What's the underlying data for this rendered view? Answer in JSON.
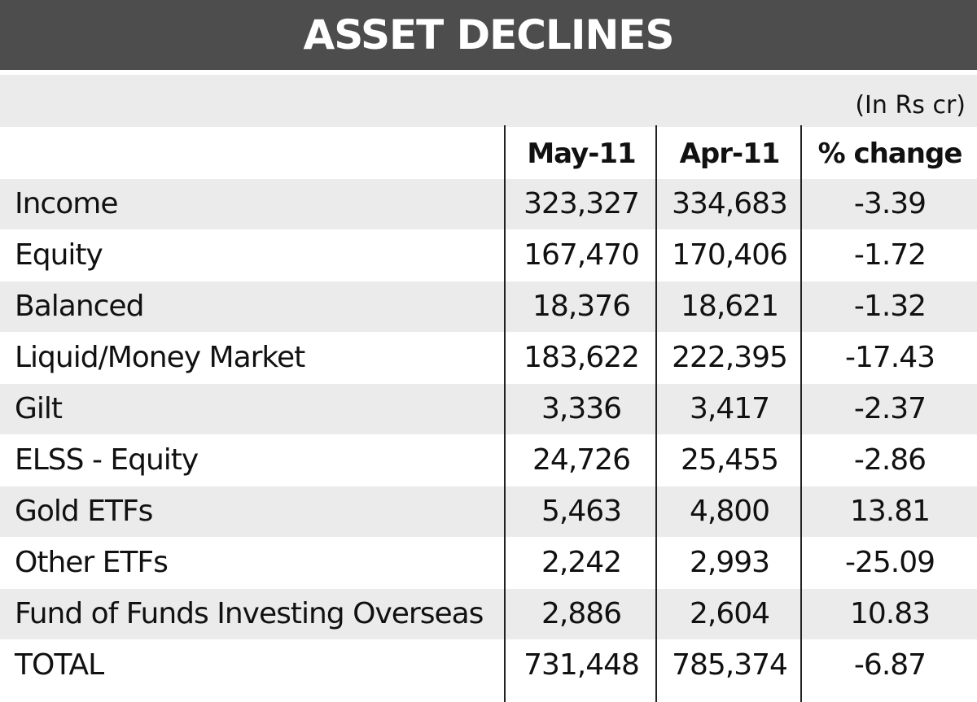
{
  "title": "ASSET DECLINES",
  "unit_note": "(In Rs cr)",
  "chart_data": {
    "type": "table",
    "title": "ASSET DECLINES",
    "unit": "(In Rs cr)",
    "columns": [
      "May-11",
      "Apr-11",
      "% change"
    ],
    "rows": [
      {
        "label": "Income",
        "may": "323,327",
        "apr": "334,683",
        "pct": "-3.39"
      },
      {
        "label": "Equity",
        "may": "167,470",
        "apr": "170,406",
        "pct": "-1.72"
      },
      {
        "label": "Balanced",
        "may": "18,376",
        "apr": "18,621",
        "pct": "-1.32"
      },
      {
        "label": "Liquid/Money Market",
        "may": "183,622",
        "apr": "222,395",
        "pct": "-17.43"
      },
      {
        "label": "Gilt",
        "may": "3,336",
        "apr": "3,417",
        "pct": "-2.37"
      },
      {
        "label": "ELSS - Equity",
        "may": "24,726",
        "apr": "25,455",
        "pct": "-2.86"
      },
      {
        "label": "Gold ETFs",
        "may": "5,463",
        "apr": "4,800",
        "pct": "13.81"
      },
      {
        "label": "Other ETFs",
        "may": "2,242",
        "apr": "2,993",
        "pct": "-25.09"
      },
      {
        "label": "Fund of Funds Investing Overseas",
        "may": "2,886",
        "apr": "2,604",
        "pct": "10.83"
      },
      {
        "label": "TOTAL",
        "may": "731,448",
        "apr": "785,374",
        "pct": "-6.87"
      }
    ]
  },
  "colors": {
    "title_bar": "#4d4d4d",
    "row_shade": "#ebebeb",
    "row_white": "#ffffff",
    "grid_line": "#222222"
  }
}
